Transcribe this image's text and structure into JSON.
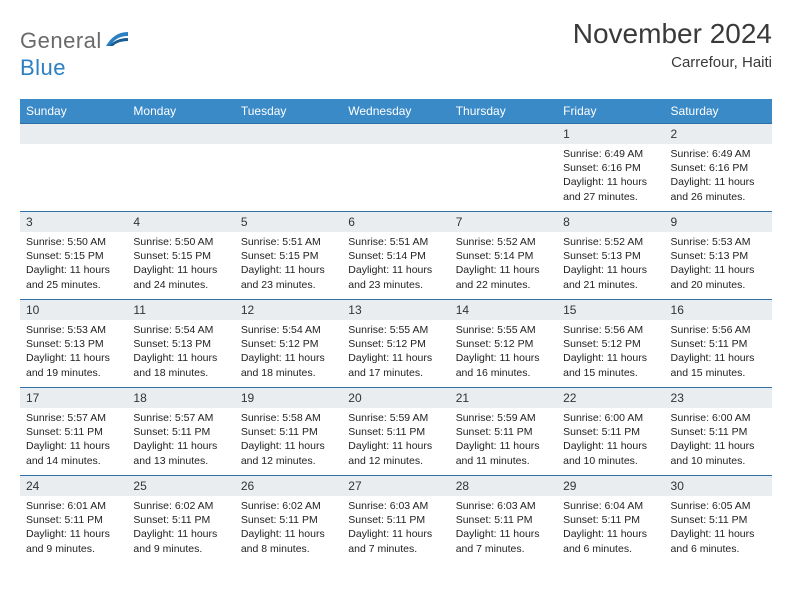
{
  "brand": {
    "part1": "General",
    "part2": "Blue"
  },
  "title": "November 2024",
  "location": "Carrefour, Haiti",
  "colors": {
    "header_bg": "#3a8ac8",
    "header_text": "#ffffff",
    "daynum_bg": "#e9edf0",
    "row_border": "#2f6fa3",
    "brand_blue": "#2b7fc3",
    "brand_gray": "#6a6a6a"
  },
  "weekdays": [
    "Sunday",
    "Monday",
    "Tuesday",
    "Wednesday",
    "Thursday",
    "Friday",
    "Saturday"
  ],
  "weeks": [
    [
      null,
      null,
      null,
      null,
      null,
      {
        "n": "1",
        "sr": "Sunrise: 6:49 AM",
        "ss": "Sunset: 6:16 PM",
        "dl": "Daylight: 11 hours and 27 minutes."
      },
      {
        "n": "2",
        "sr": "Sunrise: 6:49 AM",
        "ss": "Sunset: 6:16 PM",
        "dl": "Daylight: 11 hours and 26 minutes."
      }
    ],
    [
      {
        "n": "3",
        "sr": "Sunrise: 5:50 AM",
        "ss": "Sunset: 5:15 PM",
        "dl": "Daylight: 11 hours and 25 minutes."
      },
      {
        "n": "4",
        "sr": "Sunrise: 5:50 AM",
        "ss": "Sunset: 5:15 PM",
        "dl": "Daylight: 11 hours and 24 minutes."
      },
      {
        "n": "5",
        "sr": "Sunrise: 5:51 AM",
        "ss": "Sunset: 5:15 PM",
        "dl": "Daylight: 11 hours and 23 minutes."
      },
      {
        "n": "6",
        "sr": "Sunrise: 5:51 AM",
        "ss": "Sunset: 5:14 PM",
        "dl": "Daylight: 11 hours and 23 minutes."
      },
      {
        "n": "7",
        "sr": "Sunrise: 5:52 AM",
        "ss": "Sunset: 5:14 PM",
        "dl": "Daylight: 11 hours and 22 minutes."
      },
      {
        "n": "8",
        "sr": "Sunrise: 5:52 AM",
        "ss": "Sunset: 5:13 PM",
        "dl": "Daylight: 11 hours and 21 minutes."
      },
      {
        "n": "9",
        "sr": "Sunrise: 5:53 AM",
        "ss": "Sunset: 5:13 PM",
        "dl": "Daylight: 11 hours and 20 minutes."
      }
    ],
    [
      {
        "n": "10",
        "sr": "Sunrise: 5:53 AM",
        "ss": "Sunset: 5:13 PM",
        "dl": "Daylight: 11 hours and 19 minutes."
      },
      {
        "n": "11",
        "sr": "Sunrise: 5:54 AM",
        "ss": "Sunset: 5:13 PM",
        "dl": "Daylight: 11 hours and 18 minutes."
      },
      {
        "n": "12",
        "sr": "Sunrise: 5:54 AM",
        "ss": "Sunset: 5:12 PM",
        "dl": "Daylight: 11 hours and 18 minutes."
      },
      {
        "n": "13",
        "sr": "Sunrise: 5:55 AM",
        "ss": "Sunset: 5:12 PM",
        "dl": "Daylight: 11 hours and 17 minutes."
      },
      {
        "n": "14",
        "sr": "Sunrise: 5:55 AM",
        "ss": "Sunset: 5:12 PM",
        "dl": "Daylight: 11 hours and 16 minutes."
      },
      {
        "n": "15",
        "sr": "Sunrise: 5:56 AM",
        "ss": "Sunset: 5:12 PM",
        "dl": "Daylight: 11 hours and 15 minutes."
      },
      {
        "n": "16",
        "sr": "Sunrise: 5:56 AM",
        "ss": "Sunset: 5:11 PM",
        "dl": "Daylight: 11 hours and 15 minutes."
      }
    ],
    [
      {
        "n": "17",
        "sr": "Sunrise: 5:57 AM",
        "ss": "Sunset: 5:11 PM",
        "dl": "Daylight: 11 hours and 14 minutes."
      },
      {
        "n": "18",
        "sr": "Sunrise: 5:57 AM",
        "ss": "Sunset: 5:11 PM",
        "dl": "Daylight: 11 hours and 13 minutes."
      },
      {
        "n": "19",
        "sr": "Sunrise: 5:58 AM",
        "ss": "Sunset: 5:11 PM",
        "dl": "Daylight: 11 hours and 12 minutes."
      },
      {
        "n": "20",
        "sr": "Sunrise: 5:59 AM",
        "ss": "Sunset: 5:11 PM",
        "dl": "Daylight: 11 hours and 12 minutes."
      },
      {
        "n": "21",
        "sr": "Sunrise: 5:59 AM",
        "ss": "Sunset: 5:11 PM",
        "dl": "Daylight: 11 hours and 11 minutes."
      },
      {
        "n": "22",
        "sr": "Sunrise: 6:00 AM",
        "ss": "Sunset: 5:11 PM",
        "dl": "Daylight: 11 hours and 10 minutes."
      },
      {
        "n": "23",
        "sr": "Sunrise: 6:00 AM",
        "ss": "Sunset: 5:11 PM",
        "dl": "Daylight: 11 hours and 10 minutes."
      }
    ],
    [
      {
        "n": "24",
        "sr": "Sunrise: 6:01 AM",
        "ss": "Sunset: 5:11 PM",
        "dl": "Daylight: 11 hours and 9 minutes."
      },
      {
        "n": "25",
        "sr": "Sunrise: 6:02 AM",
        "ss": "Sunset: 5:11 PM",
        "dl": "Daylight: 11 hours and 9 minutes."
      },
      {
        "n": "26",
        "sr": "Sunrise: 6:02 AM",
        "ss": "Sunset: 5:11 PM",
        "dl": "Daylight: 11 hours and 8 minutes."
      },
      {
        "n": "27",
        "sr": "Sunrise: 6:03 AM",
        "ss": "Sunset: 5:11 PM",
        "dl": "Daylight: 11 hours and 7 minutes."
      },
      {
        "n": "28",
        "sr": "Sunrise: 6:03 AM",
        "ss": "Sunset: 5:11 PM",
        "dl": "Daylight: 11 hours and 7 minutes."
      },
      {
        "n": "29",
        "sr": "Sunrise: 6:04 AM",
        "ss": "Sunset: 5:11 PM",
        "dl": "Daylight: 11 hours and 6 minutes."
      },
      {
        "n": "30",
        "sr": "Sunrise: 6:05 AM",
        "ss": "Sunset: 5:11 PM",
        "dl": "Daylight: 11 hours and 6 minutes."
      }
    ]
  ]
}
